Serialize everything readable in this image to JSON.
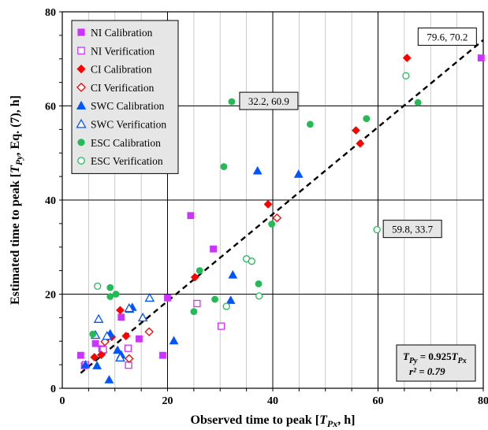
{
  "chart_data": {
    "type": "scatter",
    "title": "",
    "xlabel_main": "Observed time to peak [",
    "xlabel_var": "T",
    "xlabel_sub": "Px",
    "xlabel_tail": ", h]",
    "ylabel_main": "Estimated time to peak [",
    "ylabel_var": "T",
    "ylabel_sub": "Py",
    "ylabel_tail": ", Eq. (7), h]",
    "xlim": [
      0,
      80
    ],
    "ylim": [
      0,
      80
    ],
    "x_ticks": [
      "0",
      "20",
      "40",
      "60",
      "80"
    ],
    "y_ticks": [
      "0",
      "20",
      "40",
      "60",
      "80"
    ],
    "grid": true,
    "legend_placement": "top-left",
    "series": [
      {
        "name": "NI Calibration",
        "marker": "square",
        "filled": true,
        "color": "#cc33ff",
        "points": [
          [
            3.5,
            7
          ],
          [
            4.2,
            4.8
          ],
          [
            6.3,
            9.5
          ],
          [
            7.5,
            8.4
          ],
          [
            11.2,
            15.1
          ],
          [
            14.6,
            10.5
          ],
          [
            19.1,
            7
          ],
          [
            20,
            19.2
          ],
          [
            24.4,
            36.7
          ],
          [
            28.7,
            29.6
          ],
          [
            79.6,
            70.2
          ]
        ]
      },
      {
        "name": "NI Verification",
        "marker": "square",
        "filled": false,
        "color": "#cc33ff",
        "points": [
          [
            4.4,
            5
          ],
          [
            7.8,
            8.2
          ],
          [
            12.5,
            8.5
          ],
          [
            12.6,
            4.9
          ],
          [
            25.6,
            18
          ],
          [
            30.2,
            13.2
          ]
        ]
      },
      {
        "name": "CI Calibration",
        "marker": "diamond",
        "filled": true,
        "color": "#ff0000",
        "points": [
          [
            6.1,
            6.6
          ],
          [
            7.4,
            7.1
          ],
          [
            9.4,
            10.9
          ],
          [
            11,
            16.6
          ],
          [
            12.1,
            11.1
          ],
          [
            25.2,
            23.6
          ],
          [
            39.1,
            39.1
          ],
          [
            55.8,
            54.8
          ],
          [
            56.6,
            52
          ],
          [
            65.5,
            70.2
          ]
        ]
      },
      {
        "name": "CI Verification",
        "marker": "diamond",
        "filled": false,
        "color": "#ff0000",
        "points": [
          [
            8.1,
            9.9
          ],
          [
            8.8,
            11
          ],
          [
            12.7,
            6.3
          ],
          [
            16.5,
            12
          ],
          [
            40.8,
            36.2
          ]
        ]
      },
      {
        "name": "SWC Calibration",
        "marker": "triangle",
        "filled": true,
        "color": "#0055ff",
        "points": [
          [
            4.4,
            5
          ],
          [
            6.6,
            4.8
          ],
          [
            8.9,
            1.8
          ],
          [
            9.1,
            11.6
          ],
          [
            10.5,
            8.1
          ],
          [
            11.2,
            7.1
          ],
          [
            12.8,
            16.8
          ],
          [
            13.3,
            17.2
          ],
          [
            21.2,
            10.1
          ],
          [
            32,
            18.7
          ],
          [
            32.4,
            24.1
          ],
          [
            37.1,
            46.2
          ],
          [
            44.9,
            45.5
          ]
        ]
      },
      {
        "name": "SWC Verification",
        "marker": "triangle",
        "filled": false,
        "color": "#0055ff",
        "points": [
          [
            6.3,
            11.3
          ],
          [
            6.9,
            14.7
          ],
          [
            8.5,
            11.1
          ],
          [
            11,
            6.5
          ],
          [
            12.7,
            17
          ],
          [
            15.3,
            15
          ],
          [
            16.6,
            19.2
          ]
        ]
      },
      {
        "name": "ESC Calibration",
        "marker": "circle",
        "filled": true,
        "color": "#22bb55",
        "points": [
          [
            5.8,
            11.5
          ],
          [
            9.1,
            21.4
          ],
          [
            9.1,
            19.5
          ],
          [
            10.2,
            20
          ],
          [
            25,
            16.3
          ],
          [
            26.1,
            25
          ],
          [
            29,
            18.9
          ],
          [
            30.7,
            47.1
          ],
          [
            32.2,
            60.9
          ],
          [
            37.3,
            22.2
          ],
          [
            39.8,
            34.9
          ],
          [
            47.1,
            56.1
          ],
          [
            57.8,
            57.3
          ],
          [
            67.6,
            60.7
          ]
        ]
      },
      {
        "name": "ESC Verification",
        "marker": "circle",
        "filled": false,
        "color": "#22bb55",
        "points": [
          [
            6.7,
            21.7
          ],
          [
            31.2,
            17.4
          ],
          [
            35,
            27.5
          ],
          [
            36,
            27
          ],
          [
            37.4,
            19.6
          ],
          [
            59.8,
            33.7
          ],
          [
            65.3,
            66.4
          ]
        ]
      }
    ],
    "trendline": {
      "slope": 0.925,
      "x_range": [
        3.5,
        80
      ],
      "style": "dashed",
      "color": "#000000"
    },
    "annotations": [
      {
        "text": "79.6, 70.2",
        "x": 79.6,
        "y": 70.2
      },
      {
        "text": "32.2, 60.9",
        "x": 32.2,
        "y": 60.9
      },
      {
        "text": "59.8, 33.7",
        "x": 59.8,
        "y": 33.7
      }
    ],
    "equation": {
      "line1_var": "T",
      "line1_sub": "Py",
      "line1_mid": " = 0.925",
      "line1_var2": "T",
      "line1_sub2": "Px",
      "line2": "r² = 0.79"
    }
  }
}
